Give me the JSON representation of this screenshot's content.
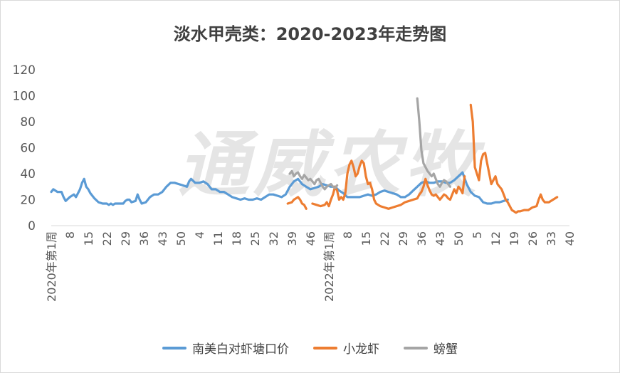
{
  "watermark": "通威农牧",
  "chart_data": {
    "type": "line",
    "title": "淡水甲壳类：2020-2023年走势图",
    "xlabel": "",
    "ylabel": "",
    "ylim": [
      0,
      120
    ],
    "yticks": [
      0,
      20,
      40,
      60,
      80,
      100,
      120
    ],
    "x_labels": [
      "2020年第1周",
      "8",
      "15",
      "22",
      "29",
      "36",
      "43",
      "50",
      "4",
      "11",
      "18",
      "25",
      "32",
      "39",
      "46",
      "2022年第1周",
      "8",
      "15",
      "22",
      "29",
      "36",
      "43",
      "50",
      "5",
      "12",
      "19",
      "26",
      "33",
      "40"
    ],
    "grid": false,
    "legend_position": "bottom",
    "series": [
      {
        "name": "南美白对虾塘口价",
        "color": "#5b9bd5",
        "points": [
          [
            0,
            26
          ],
          [
            1,
            28
          ],
          [
            3,
            26
          ],
          [
            5,
            26
          ],
          [
            6,
            22
          ],
          [
            7,
            19
          ],
          [
            9,
            22
          ],
          [
            11,
            24
          ],
          [
            12,
            22
          ],
          [
            13,
            25
          ],
          [
            14,
            28
          ],
          [
            15,
            33
          ],
          [
            16,
            36
          ],
          [
            17,
            30
          ],
          [
            18,
            28
          ],
          [
            19,
            25
          ],
          [
            21,
            21
          ],
          [
            23,
            18
          ],
          [
            25,
            17
          ],
          [
            27,
            17
          ],
          [
            28,
            16
          ],
          [
            29,
            17
          ],
          [
            30,
            16
          ],
          [
            31,
            17
          ],
          [
            33,
            17
          ],
          [
            35,
            17
          ],
          [
            36,
            19
          ],
          [
            37,
            20
          ],
          [
            38,
            20
          ],
          [
            39,
            18
          ],
          [
            41,
            19
          ],
          [
            42,
            24
          ],
          [
            43,
            20
          ],
          [
            44,
            17
          ],
          [
            46,
            18
          ],
          [
            48,
            22
          ],
          [
            50,
            24
          ],
          [
            52,
            24
          ],
          [
            54,
            26
          ],
          [
            56,
            30
          ],
          [
            58,
            33
          ],
          [
            60,
            33
          ],
          [
            62,
            32
          ],
          [
            64,
            31
          ],
          [
            66,
            30
          ],
          [
            67,
            34
          ],
          [
            68,
            36
          ],
          [
            70,
            33
          ],
          [
            72,
            33
          ],
          [
            74,
            34
          ],
          [
            76,
            32
          ],
          [
            78,
            28
          ],
          [
            80,
            28
          ],
          [
            82,
            26
          ],
          [
            84,
            26
          ],
          [
            86,
            24
          ],
          [
            88,
            22
          ],
          [
            90,
            21
          ],
          [
            92,
            20
          ],
          [
            94,
            21
          ],
          [
            96,
            20
          ],
          [
            98,
            20
          ],
          [
            100,
            21
          ],
          [
            102,
            20
          ],
          [
            104,
            22
          ],
          [
            106,
            24
          ],
          [
            108,
            24
          ],
          [
            110,
            23
          ],
          [
            112,
            22
          ],
          [
            114,
            24
          ],
          [
            116,
            30
          ],
          [
            118,
            34
          ],
          [
            120,
            36
          ],
          [
            122,
            32
          ],
          [
            124,
            30
          ],
          [
            126,
            28
          ],
          [
            128,
            29
          ],
          [
            130,
            30
          ],
          [
            132,
            32
          ],
          [
            134,
            31
          ],
          [
            136,
            30
          ],
          [
            138,
            30
          ],
          [
            140,
            27
          ],
          [
            142,
            25
          ],
          [
            144,
            22
          ],
          [
            146,
            22
          ],
          [
            148,
            22
          ],
          [
            150,
            22
          ],
          [
            152,
            23
          ],
          [
            154,
            24
          ],
          [
            156,
            23
          ],
          [
            158,
            24
          ],
          [
            160,
            26
          ],
          [
            162,
            27
          ],
          [
            164,
            26
          ],
          [
            166,
            25
          ],
          [
            168,
            24
          ],
          [
            170,
            22
          ],
          [
            172,
            22
          ],
          [
            174,
            24
          ],
          [
            176,
            27
          ],
          [
            178,
            30
          ],
          [
            180,
            33
          ],
          [
            182,
            34
          ],
          [
            184,
            33
          ],
          [
            186,
            33
          ],
          [
            188,
            34
          ],
          [
            190,
            34
          ],
          [
            192,
            33
          ],
          [
            194,
            33
          ],
          [
            196,
            35
          ],
          [
            198,
            38
          ],
          [
            200,
            41
          ],
          [
            202,
            32
          ],
          [
            204,
            26
          ],
          [
            206,
            23
          ],
          [
            208,
            22
          ],
          [
            210,
            18
          ],
          [
            212,
            17
          ],
          [
            214,
            17
          ],
          [
            216,
            18
          ],
          [
            218,
            18
          ],
          [
            220,
            19
          ],
          [
            222,
            20
          ]
        ]
      },
      {
        "name": "小龙虾",
        "color": "#ed7d31",
        "segments": [
          [
            [
              115,
              17
            ],
            [
              117,
              18
            ],
            [
              118,
              20
            ],
            [
              119,
              21
            ],
            [
              120,
              22
            ],
            [
              121,
              20
            ],
            [
              122,
              17
            ],
            [
              123,
              16
            ],
            [
              124,
              13
            ]
          ],
          [
            [
              127,
              17
            ],
            [
              129,
              16
            ],
            [
              131,
              15
            ],
            [
              133,
              16
            ],
            [
              134,
              18
            ],
            [
              135,
              15
            ],
            [
              136,
              20
            ],
            [
              137,
              24
            ],
            [
              138,
              30
            ],
            [
              139,
              27
            ],
            [
              140,
              20
            ],
            [
              141,
              22
            ],
            [
              142,
              20
            ],
            [
              143,
              25
            ],
            [
              144,
              40
            ],
            [
              145,
              47
            ],
            [
              146,
              50
            ],
            [
              147,
              45
            ],
            [
              148,
              38
            ],
            [
              149,
              40
            ],
            [
              150,
              46
            ],
            [
              151,
              50
            ],
            [
              152,
              48
            ],
            [
              153,
              38
            ],
            [
              154,
              32
            ],
            [
              155,
              33
            ],
            [
              156,
              28
            ],
            [
              157,
              20
            ],
            [
              158,
              17
            ],
            [
              159,
              16
            ],
            [
              160,
              15
            ],
            [
              162,
              14
            ],
            [
              164,
              13
            ],
            [
              166,
              14
            ],
            [
              168,
              15
            ],
            [
              170,
              16
            ],
            [
              172,
              18
            ],
            [
              174,
              19
            ],
            [
              176,
              20
            ],
            [
              178,
              21
            ],
            [
              179,
              24
            ],
            [
              180,
              26
            ],
            [
              181,
              30
            ],
            [
              182,
              36
            ],
            [
              183,
              31
            ],
            [
              184,
              27
            ],
            [
              185,
              24
            ],
            [
              186,
              23
            ],
            [
              187,
              24
            ],
            [
              188,
              22
            ],
            [
              189,
              20
            ],
            [
              190,
              22
            ],
            [
              191,
              24
            ],
            [
              192,
              23
            ],
            [
              193,
              21
            ],
            [
              194,
              20
            ],
            [
              195,
              24
            ],
            [
              196,
              28
            ],
            [
              197,
              25
            ],
            [
              198,
              30
            ],
            [
              199,
              28
            ],
            [
              200,
              25
            ],
            [
              201,
              38
            ]
          ],
          [
            [
              204,
              93
            ],
            [
              205,
              80
            ],
            [
              206,
              45
            ],
            [
              207,
              40
            ],
            [
              208,
              35
            ],
            [
              209,
              50
            ],
            [
              210,
              55
            ],
            [
              211,
              56
            ],
            [
              212,
              48
            ],
            [
              213,
              40
            ],
            [
              214,
              32
            ],
            [
              215,
              35
            ],
            [
              216,
              38
            ],
            [
              217,
              32
            ],
            [
              218,
              30
            ],
            [
              219,
              28
            ],
            [
              220,
              24
            ],
            [
              221,
              20
            ],
            [
              222,
              18
            ],
            [
              223,
              15
            ],
            [
              224,
              12
            ],
            [
              225,
              11
            ],
            [
              226,
              10
            ],
            [
              227,
              11
            ],
            [
              228,
              11
            ],
            [
              230,
              12
            ],
            [
              232,
              12
            ],
            [
              234,
              14
            ],
            [
              236,
              15
            ],
            [
              237,
              20
            ],
            [
              238,
              24
            ],
            [
              239,
              20
            ],
            [
              240,
              18
            ],
            [
              242,
              18
            ],
            [
              244,
              20
            ],
            [
              246,
              22
            ]
          ]
        ]
      },
      {
        "name": "螃蟹",
        "color": "#a5a5a5",
        "segments": [
          [
            [
              116,
              40
            ],
            [
              117,
              42
            ],
            [
              118,
              38
            ],
            [
              119,
              40
            ],
            [
              120,
              41
            ],
            [
              121,
              38
            ],
            [
              122,
              36
            ],
            [
              123,
              39
            ],
            [
              124,
              37
            ],
            [
              125,
              35
            ],
            [
              126,
              36
            ],
            [
              127,
              34
            ],
            [
              128,
              32
            ],
            [
              129,
              35
            ],
            [
              130,
              36
            ],
            [
              131,
              33
            ],
            [
              132,
              30
            ],
            [
              133,
              28
            ],
            [
              134,
              30
            ],
            [
              135,
              31
            ],
            [
              136,
              32
            ],
            [
              137,
              30
            ],
            [
              138,
              29
            ],
            [
              139,
              31
            ]
          ],
          [
            [
              178,
              98
            ],
            [
              179,
              80
            ],
            [
              180,
              58
            ],
            [
              181,
              48
            ],
            [
              182,
              45
            ],
            [
              183,
              42
            ],
            [
              184,
              40
            ],
            [
              185,
              38
            ],
            [
              186,
              40
            ],
            [
              187,
              36
            ],
            [
              188,
              32
            ],
            [
              189,
              30
            ],
            [
              190,
              33
            ],
            [
              191,
              35
            ],
            [
              192,
              34
            ],
            [
              193,
              32
            ],
            [
              194,
              30
            ]
          ]
        ]
      }
    ]
  }
}
